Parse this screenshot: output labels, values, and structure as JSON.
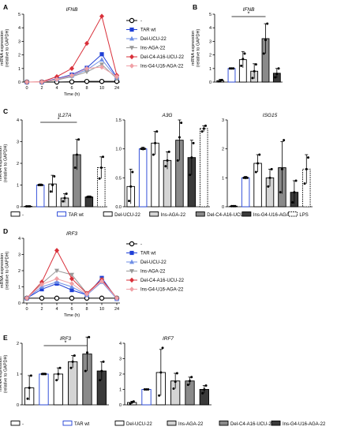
{
  "colors": {
    "neg": "#000000",
    "tar": "#1f3fd6",
    "del": "#6f8fe6",
    "ins": "#9a9a9a",
    "delc4": "#d9303a",
    "insg4": "#f0a0a6",
    "lps": "#ffffff"
  },
  "chart_data": [
    {
      "id": "A",
      "panel_label": "A",
      "type": "line",
      "title": "IFNB",
      "xlabel": "Time (h)",
      "ylabel": [
        "mRNA expression",
        "(relative to GAPDH)"
      ],
      "x": [
        "0",
        "2",
        "4",
        "6",
        "8",
        "10",
        "24"
      ],
      "ylim": [
        0,
        5
      ],
      "yticks": [
        "0",
        "1",
        "2",
        "3",
        "4",
        "5"
      ],
      "series": [
        {
          "key": "neg",
          "name": "-",
          "values": [
            0,
            0,
            0,
            0.02,
            0.05,
            0.05,
            0.05
          ],
          "marker": "circle-open"
        },
        {
          "key": "tar",
          "name": "TAR wt",
          "values": [
            0,
            0,
            0.25,
            0.55,
            1.05,
            2.05,
            0.35
          ],
          "marker": "square"
        },
        {
          "key": "del",
          "name": "Del-UCU-22",
          "values": [
            0,
            0,
            0.2,
            0.45,
            0.9,
            1.65,
            0.3
          ],
          "marker": "triangle-up"
        },
        {
          "key": "ins",
          "name": "Ins-AGA-22",
          "values": [
            0,
            0,
            0.15,
            0.4,
            0.75,
            1.3,
            0.25
          ],
          "marker": "triangle-down"
        },
        {
          "key": "delc4",
          "name": "Del-C4-A16-UCU-22",
          "values": [
            0,
            0.02,
            0.4,
            1.0,
            2.85,
            4.85,
            0.5
          ],
          "marker": "diamond"
        },
        {
          "key": "insg4",
          "name": "Ins-G4-U16-AGA-22",
          "values": [
            0,
            0,
            0.2,
            0.5,
            1.0,
            1.1,
            0.4
          ],
          "marker": "diamond"
        }
      ]
    },
    {
      "id": "B",
      "panel_label": "B",
      "type": "bar",
      "title": "IFNB",
      "ylabel": [
        "mRNA expression",
        "(relative to GAPDH)"
      ],
      "ylim": [
        0,
        5
      ],
      "yticks": [
        "0",
        "1",
        "2",
        "3",
        "4",
        "5"
      ],
      "sig": "*",
      "sig_bars": [
        1,
        4
      ],
      "bars": [
        {
          "key": "neg",
          "value": 0.1,
          "err": 0.1,
          "points": [
            0.05,
            0.1,
            0.15
          ]
        },
        {
          "key": "tar",
          "value": 1.0,
          "err": 0.05,
          "points": [
            1.0,
            1.0,
            1.0
          ]
        },
        {
          "key": "del",
          "value": 1.65,
          "err": 0.6,
          "points": [
            1.2,
            1.7,
            2.1
          ]
        },
        {
          "key": "ins",
          "value": 0.8,
          "err": 0.55,
          "points": [
            0.3,
            0.8,
            1.3
          ]
        },
        {
          "key": "delc4",
          "value": 3.2,
          "err": 1.1,
          "points": [
            2.1,
            3.1,
            4.3
          ]
        },
        {
          "key": "insg4",
          "value": 0.65,
          "err": 0.35,
          "points": [
            0.35,
            0.6,
            1.0
          ]
        }
      ]
    },
    {
      "id": "C1",
      "panel_label": "C",
      "type": "bar",
      "title": "IL27A",
      "ylabel": [
        "mRNA expression",
        "(relative to GAPDH)"
      ],
      "ylim": [
        0,
        4
      ],
      "yticks": [
        "0",
        "1",
        "2",
        "3",
        "4"
      ],
      "sig": "*",
      "sig_bars": [
        1,
        4
      ],
      "bars": [
        {
          "key": "neg",
          "value": 0.02,
          "err": 0.02,
          "points": [
            0.02,
            0.02,
            0.02
          ]
        },
        {
          "key": "tar",
          "value": 1.0,
          "err": 0.05,
          "points": [
            1.0,
            1.0,
            1.0
          ]
        },
        {
          "key": "del",
          "value": 1.05,
          "err": 0.4,
          "points": [
            0.7,
            1.0,
            1.4
          ]
        },
        {
          "key": "ins",
          "value": 0.4,
          "err": 0.2,
          "points": [
            0.25,
            0.4,
            0.6
          ]
        },
        {
          "key": "delc4",
          "value": 2.4,
          "err": 0.7,
          "points": [
            1.8,
            2.4,
            3.1
          ]
        },
        {
          "key": "insg4",
          "value": 0.45,
          "err": 0.05,
          "points": [
            0.45,
            0.45,
            0.45
          ]
        },
        {
          "key": "lps",
          "value": 1.8,
          "err": 0.5,
          "points": [
            1.3,
            1.8,
            2.3
          ]
        }
      ]
    },
    {
      "id": "C2",
      "panel_label": "",
      "type": "bar",
      "title": "A3G",
      "ylim": [
        0,
        1.5
      ],
      "yticks": [
        "0.0",
        "0.5",
        "1.0",
        "1.5"
      ],
      "bars": [
        {
          "key": "neg",
          "value": 0.35,
          "err": 0.3,
          "points": [
            0.1,
            0.35,
            0.6
          ]
        },
        {
          "key": "tar",
          "value": 1.0,
          "err": 0.03,
          "points": [
            1.0,
            1.0,
            1.0
          ]
        },
        {
          "key": "del",
          "value": 1.1,
          "err": 0.2,
          "points": [
            0.9,
            1.1,
            1.3
          ]
        },
        {
          "key": "ins",
          "value": 0.8,
          "err": 0.15,
          "points": [
            0.7,
            0.8,
            0.95
          ]
        },
        {
          "key": "delc4",
          "value": 1.15,
          "err": 0.35,
          "points": [
            0.8,
            1.2,
            1.45
          ]
        },
        {
          "key": "insg4",
          "value": 0.85,
          "err": 0.3,
          "points": [
            0.55,
            0.85,
            1.1
          ]
        },
        {
          "key": "lps",
          "value": 1.35,
          "err": 0.05,
          "points": [
            1.3,
            1.35,
            1.4
          ]
        }
      ]
    },
    {
      "id": "C3",
      "panel_label": "",
      "type": "bar",
      "title": "ISG15",
      "ylim": [
        0,
        3
      ],
      "yticks": [
        "0",
        "1",
        "2",
        "3"
      ],
      "bars": [
        {
          "key": "neg",
          "value": 0.02,
          "err": 0.02,
          "points": [
            0.02,
            0.02,
            0.02
          ]
        },
        {
          "key": "tar",
          "value": 1.0,
          "err": 0.05,
          "points": [
            1.0,
            1.0,
            1.0
          ]
        },
        {
          "key": "del",
          "value": 1.5,
          "err": 0.3,
          "points": [
            1.2,
            1.5,
            1.8
          ]
        },
        {
          "key": "ins",
          "value": 1.0,
          "err": 0.3,
          "points": [
            0.7,
            1.0,
            1.3
          ]
        },
        {
          "key": "delc4",
          "value": 1.35,
          "err": 0.9,
          "points": [
            0.5,
            1.3,
            2.3
          ]
        },
        {
          "key": "insg4",
          "value": 0.5,
          "err": 0.4,
          "points": [
            0.15,
            0.5,
            0.9
          ]
        },
        {
          "key": "lps",
          "value": 1.3,
          "err": 0.5,
          "points": [
            0.8,
            1.3,
            1.7
          ]
        }
      ]
    },
    {
      "id": "D",
      "panel_label": "D",
      "type": "line",
      "title": "IRF3",
      "xlabel": "Time (h)",
      "ylabel": [
        "mRNA expression",
        "(relative to GAPDH)"
      ],
      "x": [
        "0",
        "2",
        "4",
        "6",
        "8",
        "10",
        "24"
      ],
      "ylim": [
        0,
        4
      ],
      "yticks": [
        "0",
        "1",
        "2",
        "3",
        "4"
      ],
      "series": [
        {
          "key": "neg",
          "name": "-",
          "values": [
            0.3,
            0.3,
            0.3,
            0.3,
            0.3,
            0.3,
            0.3
          ],
          "marker": "circle-open"
        },
        {
          "key": "tar",
          "name": "TAR wt",
          "values": [
            0.3,
            0.85,
            1.2,
            0.8,
            0.5,
            1.55,
            0.25
          ],
          "marker": "square"
        },
        {
          "key": "del",
          "name": "Del-UCU-22",
          "values": [
            0.3,
            1.0,
            1.3,
            1.0,
            0.5,
            1.3,
            0.25
          ],
          "marker": "triangle-up"
        },
        {
          "key": "ins",
          "name": "Ins-AGA-22",
          "values": [
            0.3,
            1.2,
            2.0,
            1.75,
            0.6,
            1.45,
            0.3
          ],
          "marker": "triangle-down"
        },
        {
          "key": "delc4",
          "name": "Del-C4-A16-UCU-22",
          "values": [
            0.3,
            1.3,
            3.25,
            1.5,
            0.6,
            1.45,
            0.3
          ],
          "marker": "diamond"
        },
        {
          "key": "insg4",
          "name": "Ins-G4-U16-AGA-22",
          "values": [
            0.3,
            1.15,
            1.5,
            1.2,
            0.55,
            1.35,
            0.3
          ],
          "marker": "diamond"
        }
      ]
    },
    {
      "id": "E1",
      "panel_label": "E",
      "type": "bar",
      "title": "IRF3",
      "ylabel": [
        "mRNA expression",
        "(relative to GAPDH)"
      ],
      "ylim": [
        0,
        2
      ],
      "yticks": [
        "0",
        "1",
        "2"
      ],
      "sig": "*",
      "sig_bars": [
        1,
        4
      ],
      "bars": [
        {
          "key": "neg",
          "value": 0.55,
          "err": 0.4,
          "points": [
            0.2,
            0.55,
            0.95
          ]
        },
        {
          "key": "tar",
          "value": 1.0,
          "err": 0.03,
          "points": [
            1.0,
            1.0,
            1.0
          ]
        },
        {
          "key": "del",
          "value": 1.0,
          "err": 0.2,
          "points": [
            0.8,
            1.0,
            1.2
          ]
        },
        {
          "key": "ins",
          "value": 1.4,
          "err": 0.2,
          "points": [
            1.2,
            1.4,
            1.6
          ]
        },
        {
          "key": "delc4",
          "value": 1.65,
          "err": 0.55,
          "points": [
            1.1,
            1.7,
            2.2
          ]
        },
        {
          "key": "insg4",
          "value": 1.1,
          "err": 0.3,
          "points": [
            0.8,
            1.1,
            1.4
          ]
        }
      ]
    },
    {
      "id": "E2",
      "panel_label": "",
      "type": "bar",
      "title": "IRF7",
      "ylim": [
        0,
        4
      ],
      "yticks": [
        "0",
        "1",
        "2",
        "3",
        "4"
      ],
      "bars": [
        {
          "key": "neg",
          "value": 0.15,
          "err": 0.08,
          "points": [
            0.08,
            0.15,
            0.22
          ]
        },
        {
          "key": "tar",
          "value": 1.0,
          "err": 0.03,
          "points": [
            1.0,
            1.0,
            1.0
          ]
        },
        {
          "key": "del",
          "value": 2.1,
          "err": 1.5,
          "points": [
            0.6,
            2.1,
            3.7
          ]
        },
        {
          "key": "ins",
          "value": 1.55,
          "err": 0.5,
          "points": [
            1.05,
            1.5,
            2.05
          ]
        },
        {
          "key": "delc4",
          "value": 1.55,
          "err": 0.25,
          "points": [
            1.3,
            1.55,
            1.8
          ]
        },
        {
          "key": "insg4",
          "value": 1.0,
          "err": 0.25,
          "points": [
            0.75,
            1.0,
            1.25
          ]
        }
      ]
    }
  ],
  "legend_C": [
    {
      "key": "neg",
      "label": "-"
    },
    {
      "key": "tar",
      "label": "TAR wt"
    },
    {
      "key": "del",
      "label": "Del-UCU-22"
    },
    {
      "key": "ins",
      "label": "Ins-AGA-22"
    },
    {
      "key": "delc4",
      "label": "Del-C4-A16-UCU-22"
    },
    {
      "key": "insg4",
      "label": "Ins-G4-U16-AGA-22"
    },
    {
      "key": "lps",
      "label": "LPS"
    }
  ],
  "legend_E": [
    {
      "key": "neg",
      "label": "-"
    },
    {
      "key": "tar",
      "label": "TAR wt"
    },
    {
      "key": "del",
      "label": "Del-UCU-22"
    },
    {
      "key": "ins",
      "label": "Ins-AGA-22"
    },
    {
      "key": "delc4",
      "label": "Del-C4-A16-UCU-22"
    },
    {
      "key": "insg4",
      "label": "Ins-G4-U16-AGA-22"
    }
  ]
}
